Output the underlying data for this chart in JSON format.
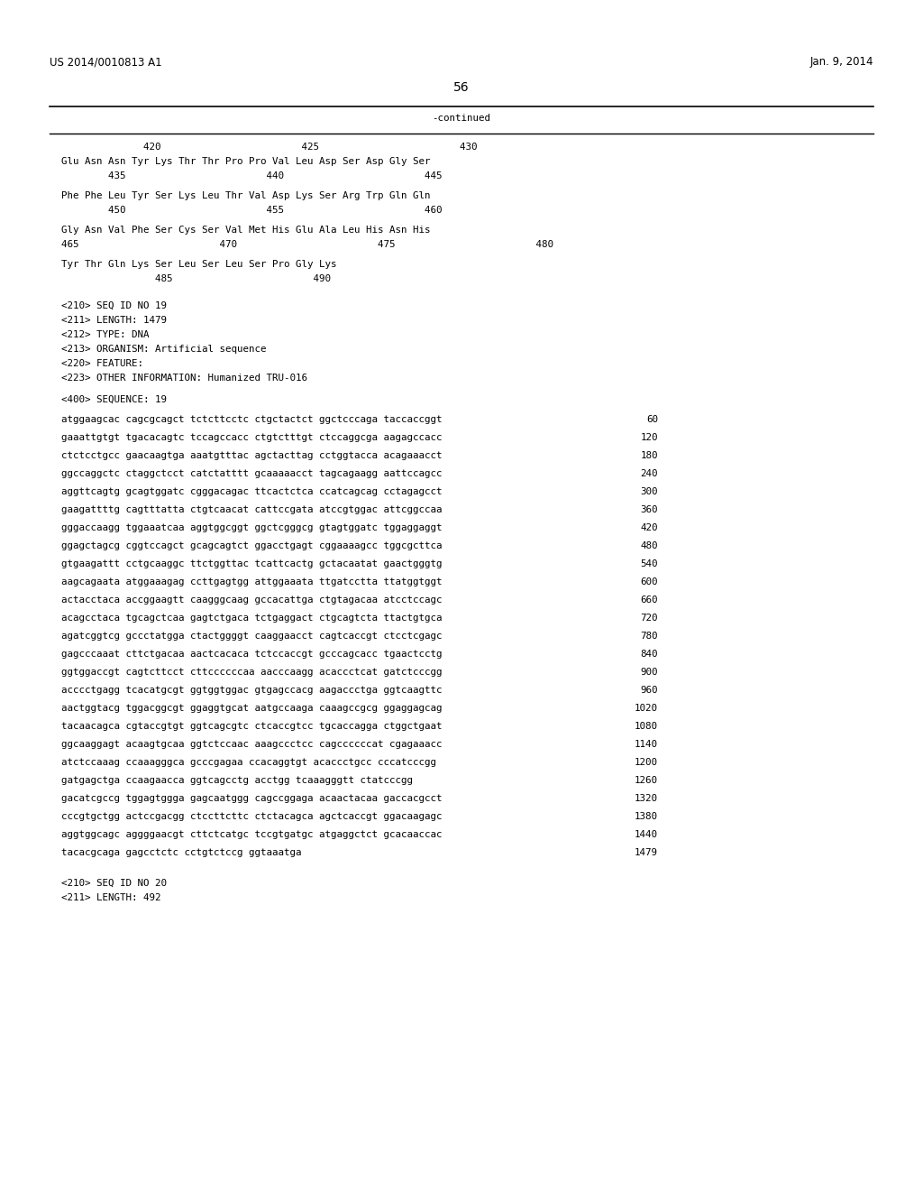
{
  "header_left": "US 2014/0010813 A1",
  "header_right": "Jan. 9, 2014",
  "page_number": "56",
  "continued_label": "-continued",
  "background_color": "#ffffff",
  "text_color": "#000000",
  "aa_lines": [
    "              420                        425                        430",
    "Glu Asn Asn Tyr Lys Thr Thr Pro Pro Val Leu Asp Ser Asp Gly Ser",
    "        435                        440                        445",
    "",
    "Phe Phe Leu Tyr Ser Lys Leu Thr Val Asp Lys Ser Arg Trp Gln Gln",
    "        450                        455                        460",
    "",
    "Gly Asn Val Phe Ser Cys Ser Val Met His Glu Ala Leu His Asn His",
    "465                        470                        475                        480",
    "",
    "Tyr Thr Gln Lys Ser Leu Ser Leu Ser Pro Gly Lys",
    "                485                        490"
  ],
  "seq_block": [
    "<210> SEQ ID NO 19",
    "<211> LENGTH: 1479",
    "<212> TYPE: DNA",
    "<213> ORGANISM: Artificial sequence",
    "<220> FEATURE:",
    "<223> OTHER INFORMATION: Humanized TRU-016"
  ],
  "seq_label": "<400> SEQUENCE: 19",
  "dna_lines": [
    [
      "atggaagcac cagcgcagct tctcttcctc ctgctactct ggctcccaga taccaccggt",
      "60"
    ],
    [
      "gaaattgtgt tgacacagtc tccagccacc ctgtctttgt ctccaggcga aagagccacc",
      "120"
    ],
    [
      "ctctcctgcc gaacaagtga aaatgtttac agctacttag cctggtacca acagaaacct",
      "180"
    ],
    [
      "ggccaggctc ctaggctcct catctatttt gcaaaaacct tagcagaagg aattccagcc",
      "240"
    ],
    [
      "aggttcagtg gcagtggatc cgggacagac ttcactctca ccatcagcag cctagagcct",
      "300"
    ],
    [
      "gaagattttg cagtttatta ctgtcaacat cattccgata atccgtggac attcggccaa",
      "360"
    ],
    [
      "gggaccaagg tggaaatcaa aggtggcggt ggctcgggcg gtagtggatc tggaggaggt",
      "420"
    ],
    [
      "ggagctagcg cggtccagct gcagcagtct ggacctgagt cggaaaagcc tggcgcttca",
      "480"
    ],
    [
      "gtgaagattt cctgcaaggc ttctggttac tcattcactg gctacaatat gaactgggtg",
      "540"
    ],
    [
      "aagcagaata atggaaagag ccttgagtgg attggaaata ttgatcctta ttatggtggt",
      "600"
    ],
    [
      "actacctaca accggaagtt caagggcaag gccacattga ctgtagacaa atcctccagc",
      "660"
    ],
    [
      "acagcctaca tgcagctcaa gagtctgaca tctgaggact ctgcagtcta ttactgtgca",
      "720"
    ],
    [
      "agatcggtcg gccctatgga ctactggggt caaggaacct cagtcaccgt ctcctcgagc",
      "780"
    ],
    [
      "gagcccaaat cttctgacaa aactcacaca tctccaccgt gcccagcacc tgaactcctg",
      "840"
    ],
    [
      "ggtggaccgt cagtcttcct cttccccccaa aacccaagg acaccctcat gatctcccgg",
      "900"
    ],
    [
      "acccctgagg tcacatgcgt ggtggtggac gtgagccacg aagaccctga ggtcaagttc",
      "960"
    ],
    [
      "aactggtacg tggacggcgt ggaggtgcat aatgccaaga caaagccgcg ggaggagcag",
      "1020"
    ],
    [
      "tacaacagca cgtaccgtgt ggtcagcgtc ctcaccgtcc tgcaccagga ctggctgaat",
      "1080"
    ],
    [
      "ggcaaggagt acaagtgcaa ggtctccaac aaagccctcc cagccccccat cgagaaacc",
      "1140"
    ],
    [
      "atctccaaag ccaaagggca gcccgagaa ccacaggtgt acaccctgcc cccatcccgg",
      "1200"
    ],
    [
      "gatgagctga ccaagaacca ggtcagcctg acctgg tcaaagggtt ctatcccgg",
      "1260"
    ],
    [
      "gacatcgccg tggagtggga gagcaatggg cagccggaga acaactacaa gaccacgcct",
      "1320"
    ],
    [
      "cccgtgctgg actccgacgg ctccttcttc ctctacagca agctcaccgt ggacaagagc",
      "1380"
    ],
    [
      "aggtggcagc aggggaacgt cttctcatgc tccgtgatgc atgaggctct gcacaaccac",
      "1440"
    ],
    [
      "tacacgcaga gagcctctc cctgtctccg ggtaaatga",
      "1479"
    ]
  ],
  "seq_block2": [
    "<210> SEQ ID NO 20",
    "<211> LENGTH: 492"
  ]
}
